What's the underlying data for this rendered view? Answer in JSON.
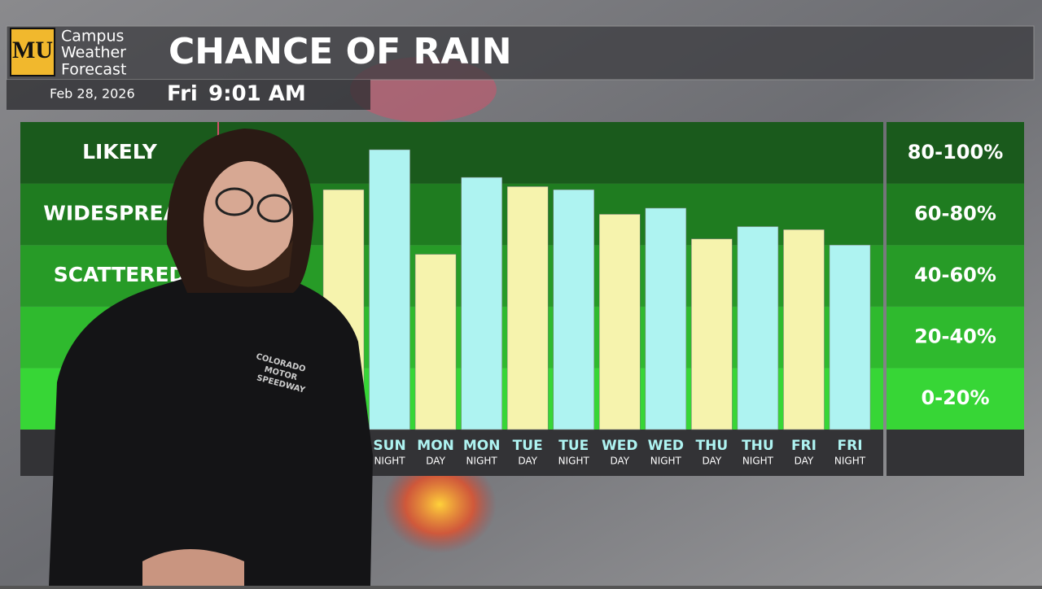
{
  "header": {
    "logo": "MU",
    "brand_lines": [
      "Campus",
      "Weather",
      "Forecast"
    ],
    "date": "Feb 28, 2026",
    "weekday": "Fri",
    "time": "9:01 AM"
  },
  "chart_data": {
    "type": "bar",
    "title": "CHANCE OF RAIN",
    "categories": [
      null,
      "SUN",
      "MON",
      "MON",
      "TUE",
      "TUE",
      "WED",
      "WED",
      "THU",
      "THU",
      "FRI",
      "FRI"
    ],
    "category_sublabels": [
      null,
      "NIGHT",
      "DAY",
      "NIGHT",
      "DAY",
      "NIGHT",
      "DAY",
      "NIGHT",
      "DAY",
      "NIGHT",
      "DAY",
      "NIGHT"
    ],
    "values": [
      78,
      91,
      57,
      82,
      79,
      78,
      70,
      72,
      62,
      66,
      65,
      60
    ],
    "colors": [
      "#f6f3ad",
      "#aef3f1",
      "#f6f3ad",
      "#aef3f1",
      "#f6f3ad",
      "#aef3f1",
      "#f6f3ad",
      "#aef3f1",
      "#f6f3ad",
      "#aef3f1",
      "#f6f3ad",
      "#aef3f1"
    ],
    "ylim": [
      0,
      100
    ],
    "yticks": [
      0,
      20,
      40,
      60,
      80,
      100
    ],
    "band_names": [
      "",
      "",
      "SCATTERED",
      "WIDESPREAD",
      "LIKELY"
    ],
    "band_ranges": [
      "0-20%",
      "20-40%",
      "40-60%",
      "60-80%",
      "80-100%"
    ],
    "band_colors": [
      "#37d636",
      "#2fba2e",
      "#279b27",
      "#1f7c20",
      "#1a5a1c"
    ]
  },
  "presenter_shirt": [
    "COLORADO",
    "MOTOR",
    "SPEEDWAY"
  ]
}
